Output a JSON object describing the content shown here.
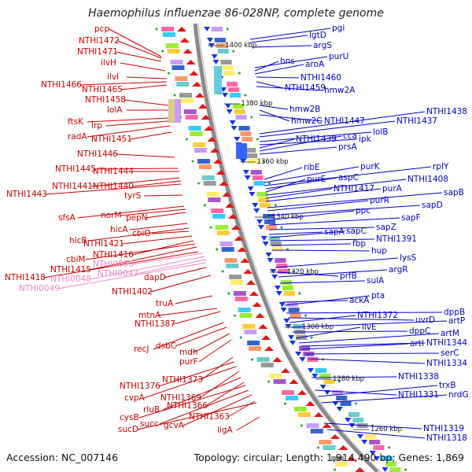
{
  "title": "Haemophilus influenzae 86-028NP, complete genome",
  "accession": "Accession: NC_007146",
  "topology": "Topology: circular; Length: 1,914,490 bp; Genes: 1,869",
  "colors": {
    "left_labels": "#cc0000",
    "right_labels": "#0000cc",
    "pink_labels": "#ee88cc",
    "backbone": "#8a8a8a",
    "forward_arrows": "#ee1111",
    "reverse_arrows": "#1133ee",
    "tick_marks": "#22aa22"
  },
  "scale_ticks": [
    "1400 kbp",
    "1380 kbp",
    "1360 kbp",
    "1340 kbp",
    "1320 kbp",
    "1300 kbp",
    "1280 kbp",
    "1260 kbp"
  ],
  "left_genes": [
    "pcp",
    "NTHI1472",
    "NTHI1471",
    "ilvH",
    "ilvI",
    "NTHI1466",
    "NTHI1465",
    "NTHI1458",
    "lolA",
    "ftsK",
    "lrp",
    "radA",
    "NTHI1451",
    "NTHI1446",
    "NTHI1445",
    "NTHI1444",
    "NTHI1441",
    "NTHI1440",
    "NTHI1443",
    "tyrS",
    "sfsA",
    "norM",
    "pepN",
    "hicA",
    "hicB",
    "cbiO",
    "NTHI1421",
    "NTHI1416",
    "cbiM",
    "NTHI1415",
    "NTHI1418",
    "dapD",
    "NTHI1402",
    "truA",
    "mtnA",
    "NTHI1387",
    "recJ",
    "dsbC",
    "mdh",
    "purF",
    "NTHI1373",
    "NTHI1376",
    "cvpA",
    "NTHI1369",
    "rluB",
    "NTHI1366",
    "cysB",
    "succ",
    "gcvA",
    "NTHI1363",
    "sucD",
    "ligA"
  ],
  "pink_genes": [
    "NTHI0050",
    "NTHI0048",
    "NTHI0047",
    "NTHI0049"
  ],
  "right_genes": [
    "pgi",
    "lgtD",
    "argS",
    "purU",
    "hns",
    "aroA",
    "NTHI1460",
    "NTHI1459",
    "hmw2A",
    "hmw2B",
    "hmw2C",
    "NTHI1447",
    "NTHI1438",
    "NTHI1437",
    "lolB",
    "ipk",
    "NTHI1439",
    "cca",
    "prsA",
    "ribE",
    "purK",
    "rplY",
    "aspC",
    "purE",
    "NTHI1408",
    "NTHI1417",
    "purA",
    "sapB",
    "purR",
    "sapD",
    "ppc",
    "sapF",
    "sapZ",
    "sapA",
    "sapC",
    "NTHI1391",
    "fbp",
    "hup",
    "lysS",
    "prfB",
    "argR",
    "sulA",
    "ackA",
    "pta",
    "dppB",
    "uvrD",
    "NTHI1372",
    "artP",
    "dppC",
    "ilvE",
    "artM",
    "NTHI1344",
    "artI",
    "serC",
    "NTHI1334",
    "NTHI1338",
    "NTHI1331",
    "trxB",
    "nrdG",
    "NTHI1319",
    "NTHI1318"
  ]
}
